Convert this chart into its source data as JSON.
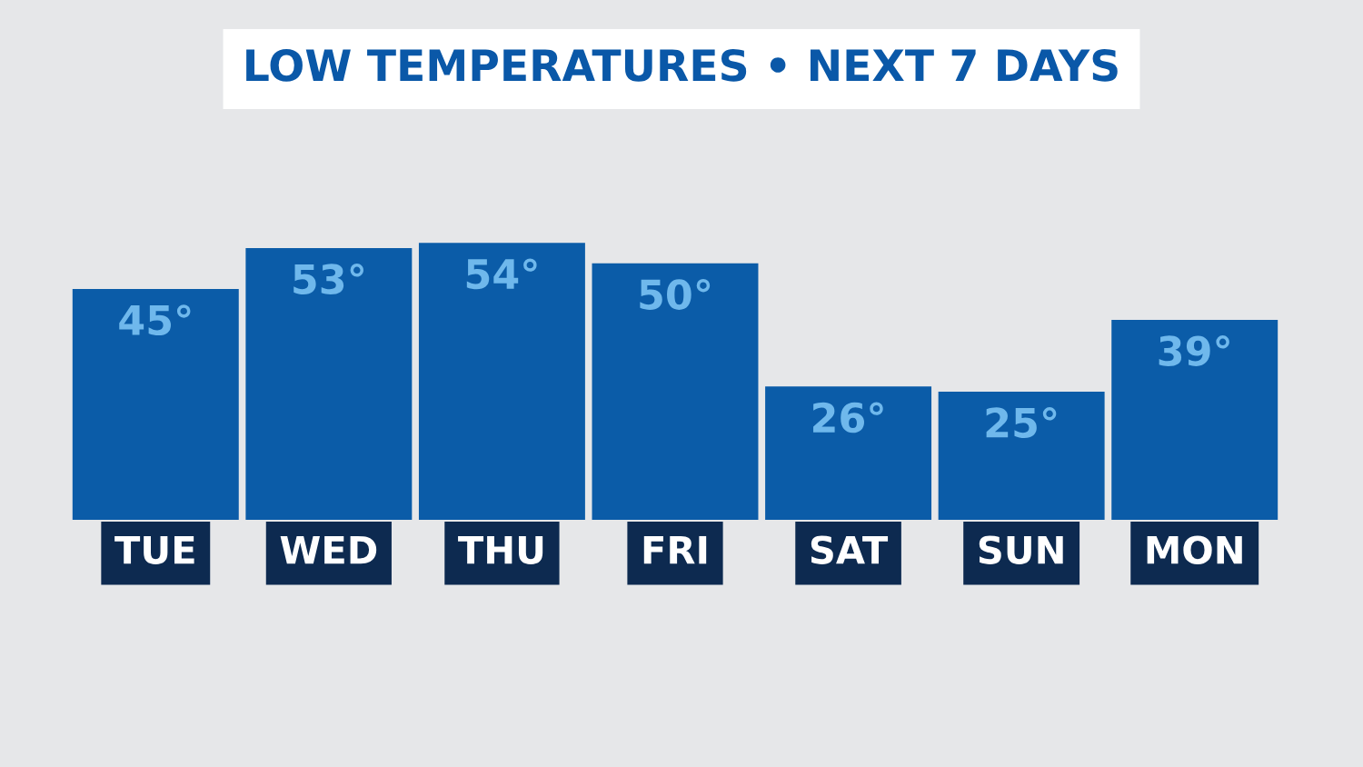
{
  "chart_data": {
    "type": "bar",
    "title": "LOW TEMPERATURES • NEXT 7 DAYS",
    "categories": [
      "TUE",
      "WED",
      "THU",
      "FRI",
      "SAT",
      "SUN",
      "MON"
    ],
    "values": [
      45,
      53,
      54,
      50,
      26,
      25,
      39
    ],
    "value_labels": [
      "45°",
      "53°",
      "54°",
      "50°",
      "26°",
      "25°",
      "39°"
    ],
    "color": "#0b5ca8",
    "tick_labels": "x"
  }
}
